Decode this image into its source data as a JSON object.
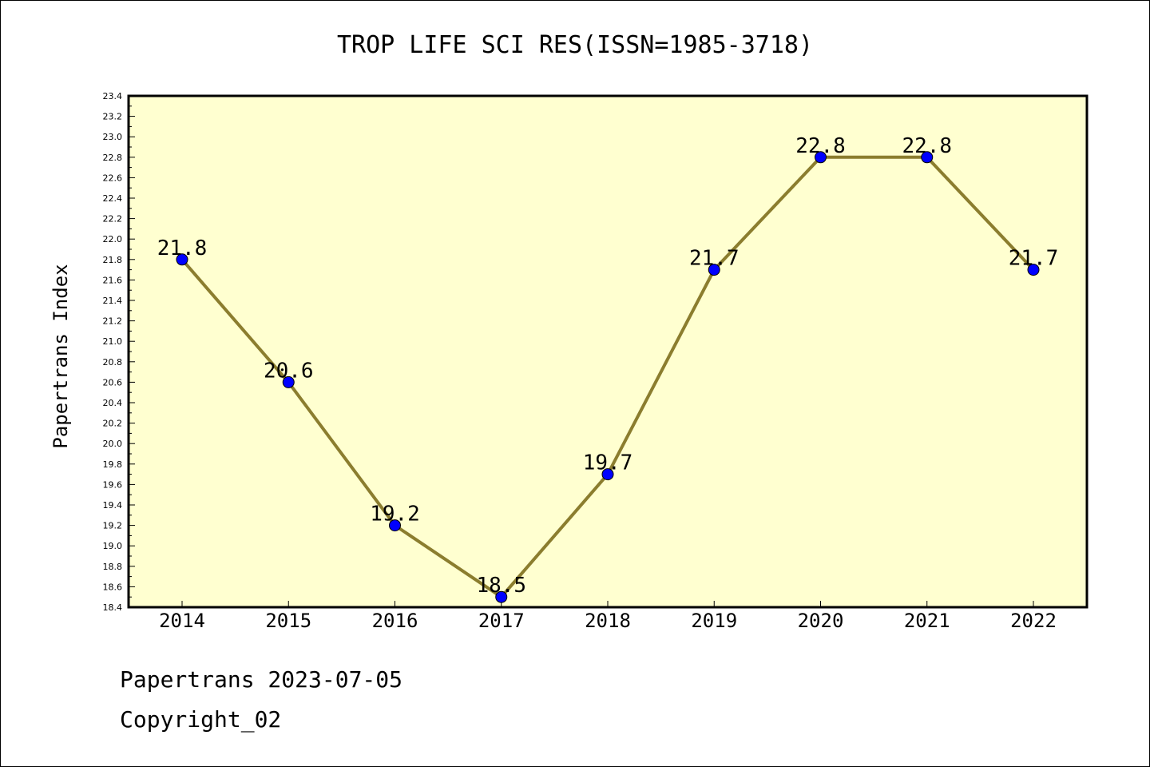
{
  "chart_data": {
    "type": "line",
    "title": "TROP LIFE SCI RES(ISSN=1985-3718)",
    "ylabel": "Papertrans Index",
    "xlabel": "",
    "categories": [
      "2014",
      "2015",
      "2016",
      "2017",
      "2018",
      "2019",
      "2020",
      "2021",
      "2022"
    ],
    "series": [
      {
        "values": [
          21.8,
          20.6,
          19.2,
          18.5,
          19.7,
          21.7,
          22.8,
          22.8,
          21.7
        ]
      }
    ],
    "data_labels": [
      "21.8",
      "20.6",
      "19.2",
      "18.5",
      "19.7",
      "21.7",
      "22.8",
      "22.8",
      "21.7"
    ],
    "ylim": [
      18.4,
      23.4
    ],
    "yticks": [
      "18.4",
      "18.6",
      "18.8",
      "19.0",
      "19.2",
      "19.4",
      "19.6",
      "19.8",
      "20.0",
      "20.2",
      "20.4",
      "20.6",
      "20.8",
      "21.0",
      "21.2",
      "21.4",
      "21.6",
      "21.8",
      "22.0",
      "22.2",
      "22.4",
      "22.6",
      "22.8",
      "23.0",
      "23.2",
      "23.4"
    ],
    "grid": false,
    "colors": {
      "plot_background": "#ffffd0",
      "line": "#8b7d2e",
      "marker": "#0000ff"
    }
  },
  "footer": {
    "line1": "Papertrans 2023-07-05",
    "line2": "Copyright_02"
  }
}
